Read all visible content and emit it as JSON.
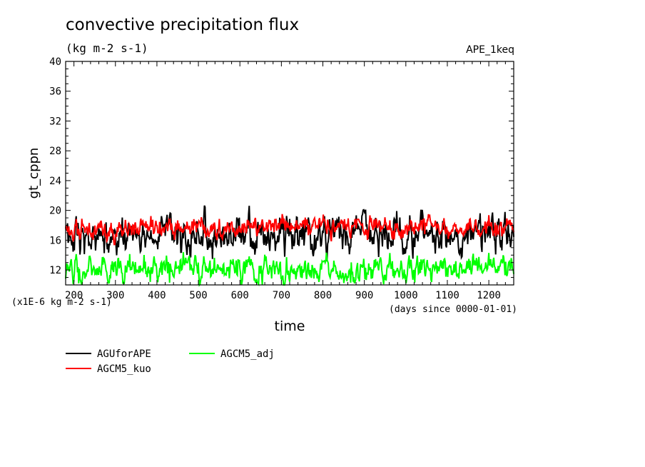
{
  "chart_data": {
    "type": "line",
    "title": "convective precipitation flux",
    "subtitle": "(kg m-2 s-1)",
    "annotation_right": "APE_1keq",
    "xlabel": "time",
    "xunits": "(days since 0000-01-01)",
    "ylabel": "gt_cppn",
    "yscale": "(x1E-6 kg m-2 s-1)",
    "xlim": [
      180,
      1260
    ],
    "ylim": [
      10,
      40
    ],
    "xticks": [
      200,
      300,
      400,
      500,
      600,
      700,
      800,
      900,
      1000,
      1100,
      1200
    ],
    "yticks": [
      12,
      16,
      20,
      24,
      28,
      32,
      36,
      40
    ],
    "grid": false,
    "legend_position": "bottom-left",
    "series": [
      {
        "name": "AGUforAPE",
        "color": "#000000",
        "x": [
          180,
          250,
          300,
          350,
          400,
          450,
          500,
          550,
          600,
          650,
          700,
          750,
          800,
          850,
          900,
          950,
          1000,
          1050,
          1100,
          1150,
          1200,
          1260
        ],
        "values": [
          16.5,
          16.2,
          16.4,
          16.6,
          16.5,
          16.7,
          16.9,
          16.6,
          17.0,
          16.4,
          16.8,
          16.7,
          16.6,
          17.0,
          16.9,
          16.7,
          16.8,
          16.5,
          16.9,
          16.6,
          16.8,
          16.7
        ]
      },
      {
        "name": "AGCM5_kuo",
        "color": "#ff0000",
        "x": [
          180,
          250,
          300,
          350,
          400,
          450,
          500,
          550,
          600,
          650,
          700,
          750,
          800,
          850,
          900,
          950,
          1000,
          1050,
          1100,
          1150,
          1200,
          1260
        ],
        "values": [
          17.6,
          17.8,
          17.5,
          17.6,
          17.7,
          17.6,
          17.8,
          17.6,
          17.7,
          17.8,
          17.5,
          17.8,
          17.6,
          17.7,
          17.5,
          17.8,
          17.6,
          17.7,
          17.6,
          17.5,
          17.6,
          17.5
        ]
      },
      {
        "name": "AGCM5_adj",
        "color": "#00ff00",
        "x": [
          180,
          250,
          300,
          350,
          400,
          450,
          500,
          550,
          600,
          650,
          700,
          750,
          800,
          850,
          900,
          950,
          1000,
          1050,
          1100,
          1150,
          1200,
          1260
        ],
        "values": [
          12.0,
          11.8,
          11.9,
          12.1,
          12.0,
          11.9,
          11.9,
          12.0,
          12.2,
          11.9,
          12.0,
          11.8,
          12.1,
          12.0,
          11.9,
          12.1,
          12.0,
          12.1,
          11.9,
          12.0,
          12.1,
          12.0
        ]
      }
    ]
  }
}
